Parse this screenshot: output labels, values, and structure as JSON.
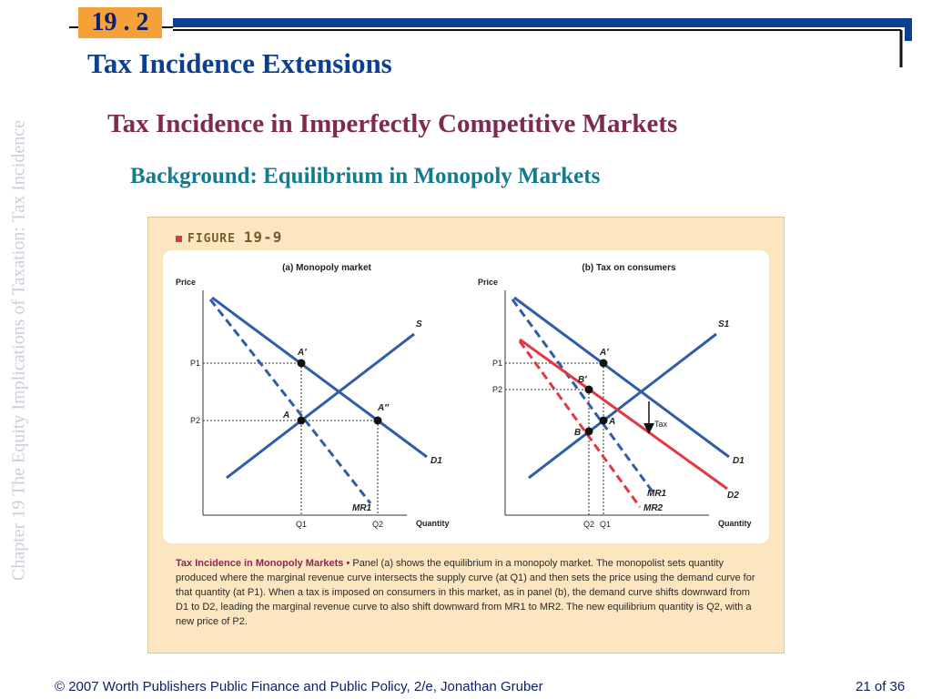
{
  "sidebar_text": "Chapter 19  The Equity Implications of Taxation: Tax Incidence",
  "section_number": "19 . 2",
  "title": "Tax Incidence Extensions",
  "subtitle": "Tax Incidence in Imperfectly Competitive Markets",
  "subsubtitle": "Background: Equilibrium in Monopoly Markets",
  "figure": {
    "label_prefix": "FIGURE",
    "label_number": "19-9",
    "panel_a": {
      "title": "(a) Monopoly market",
      "y_axis": "Price",
      "x_axis": "Quantity",
      "p1": "P1",
      "p2": "P2",
      "q1": "Q1",
      "q2": "Q2",
      "supply": "S",
      "demand": "D1",
      "mr": "MR1",
      "point_a_prime": "A′",
      "point_a": "A",
      "point_a_double_prime": "A″"
    },
    "panel_b": {
      "title": "(b) Tax on consumers",
      "y_axis": "Price",
      "x_axis": "Quantity",
      "p1": "P1",
      "p2": "P2",
      "q2": "Q2",
      "q1": "Q1",
      "supply": "S1",
      "demand1": "D1",
      "demand2": "D2",
      "mr1": "MR1",
      "mr2": "MR2",
      "point_a_prime": "A′",
      "point_b_prime": "B′",
      "point_a": "A",
      "point_b": "B",
      "tax_label": "Tax"
    },
    "colors": {
      "blue": "#2f5da9",
      "red": "#e2383f"
    },
    "caption_head": "Tax Incidence in Monopoly Markets •",
    "caption_body": " Panel (a) shows the equilibrium in a monopoly market. The monopolist sets quantity produced where the marginal revenue curve intersects the supply curve (at Q1) and then sets the price using the demand curve for that quantity (at P1). When a tax is imposed on consumers in this market, as in panel (b), the demand curve shifts downward from D1 to D2, leading the marginal revenue curve to also shift downward from MR1 to MR2. The new equilibrium quantity is Q2, with a new price of P2."
  },
  "footer": {
    "left": "© 2007 Worth Publishers   Public Finance and Public Policy, 2/e, Jonathan Gruber",
    "right": "21 of 36"
  }
}
